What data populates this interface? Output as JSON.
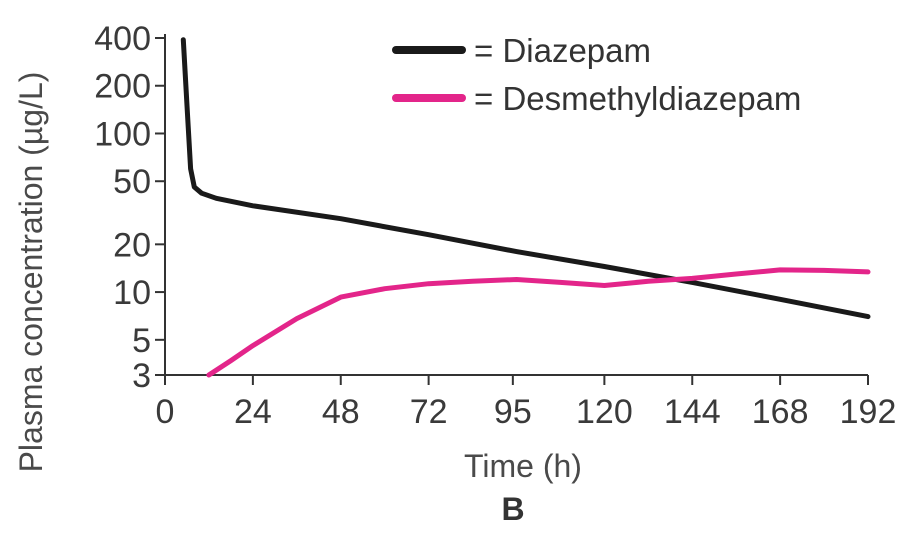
{
  "chart_data": {
    "type": "line",
    "title": "",
    "xlabel": "Time (h)",
    "ylabel": "Plasma concentration (µg/L)",
    "panel_label": "B",
    "x_scale": "linear",
    "y_scale": "log",
    "xlim": [
      0,
      192
    ],
    "ylim": [
      3,
      400
    ],
    "x_ticks": [
      0,
      24,
      48,
      72,
      95,
      120,
      144,
      168,
      192
    ],
    "y_ticks": [
      3,
      5,
      10,
      20,
      50,
      100,
      200,
      400
    ],
    "grid": false,
    "legend_position": "top-right",
    "series": [
      {
        "name": "Diazepam",
        "legend_text": "= Diazepam",
        "color": "#1a1a1a",
        "points": [
          [
            5,
            390
          ],
          [
            6,
            150
          ],
          [
            7,
            60
          ],
          [
            8,
            46
          ],
          [
            10,
            42
          ],
          [
            14,
            39
          ],
          [
            24,
            35
          ],
          [
            48,
            29
          ],
          [
            72,
            23
          ],
          [
            96,
            18
          ],
          [
            120,
            14.5
          ],
          [
            144,
            11.5
          ],
          [
            168,
            9
          ],
          [
            192,
            7
          ]
        ]
      },
      {
        "name": "Desmethyldiazepam",
        "legend_text": "= Desmethyldiazepam",
        "color": "#e3258a",
        "points": [
          [
            12,
            3
          ],
          [
            18,
            3.7
          ],
          [
            24,
            4.6
          ],
          [
            36,
            6.8
          ],
          [
            48,
            9.3
          ],
          [
            60,
            10.5
          ],
          [
            72,
            11.3
          ],
          [
            84,
            11.7
          ],
          [
            96,
            12
          ],
          [
            108,
            11.5
          ],
          [
            120,
            11
          ],
          [
            132,
            11.7
          ],
          [
            144,
            12.2
          ],
          [
            156,
            13
          ],
          [
            168,
            13.8
          ],
          [
            180,
            13.7
          ],
          [
            192,
            13.4
          ]
        ]
      }
    ]
  }
}
